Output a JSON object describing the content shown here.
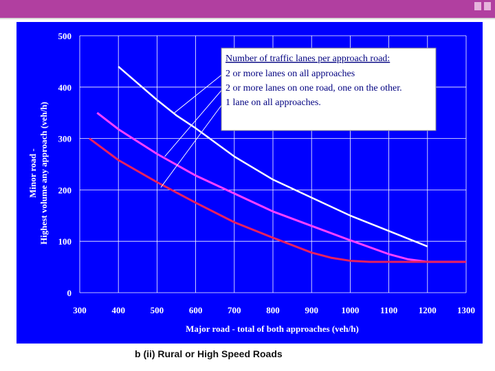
{
  "caption": "b (ii) Rural or High Speed Roads",
  "colors": {
    "background": "#0000ff",
    "header_bar": "#b13fa0",
    "line_2lanes_all": "#ffffff",
    "line_2lanes_one": "#ff40ff",
    "line_1lane": "#e8205e"
  },
  "chart_data": {
    "type": "line",
    "title": "",
    "xlabel": "Major road - total of both approaches (veh/h)",
    "ylabel_line1": "Minor road -",
    "ylabel_line2": "Highest volume any approach (veh/h)",
    "xlim": [
      300,
      1300
    ],
    "ylim": [
      0,
      500
    ],
    "x_ticks": [
      "300",
      "400",
      "500",
      "600",
      "700",
      "800",
      "900",
      "1000",
      "1100",
      "1200",
      "1300"
    ],
    "y_ticks": [
      "0",
      "100",
      "200",
      "300",
      "400",
      "500"
    ],
    "grid": true,
    "legend": {
      "title": "Number of traffic lanes per approach road:",
      "placement": "top-right",
      "entries": [
        "2 or more lanes on all approaches",
        "2 or more lanes on one road, one on the other.",
        "1 lane on all approaches."
      ]
    },
    "series": [
      {
        "color": "#ffffff",
        "x": [
          400,
          500,
          550,
          600,
          700,
          800,
          900,
          1000,
          1100,
          1200
        ],
        "y": [
          440,
          375,
          345,
          320,
          265,
          220,
          185,
          150,
          120,
          90
        ]
      },
      {
        "color": "#ff40ff",
        "x": [
          345,
          400,
          500,
          600,
          700,
          800,
          900,
          1000,
          1100,
          1150,
          1200,
          1300
        ],
        "y": [
          350,
          318,
          270,
          228,
          193,
          158,
          130,
          102,
          75,
          65,
          60,
          60
        ]
      },
      {
        "color": "#e8205e",
        "x": [
          325,
          400,
          500,
          600,
          700,
          800,
          900,
          950,
          1000,
          1050,
          1100,
          1200,
          1300
        ],
        "y": [
          300,
          258,
          215,
          175,
          137,
          107,
          78,
          68,
          62,
          60,
          60,
          60,
          60
        ]
      }
    ]
  }
}
